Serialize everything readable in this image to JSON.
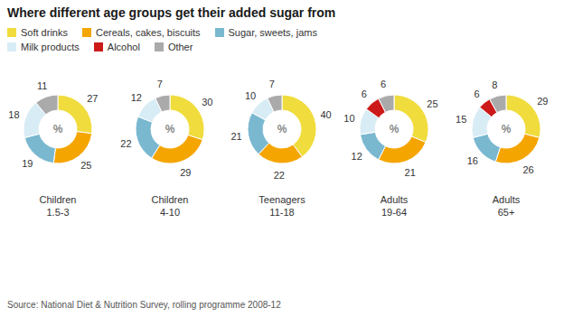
{
  "chart_data": {
    "type": "pie",
    "title": "Where different age groups get their added sugar from",
    "source": "Source: National Diet & Nutrition Survey, rolling programme 2008-12",
    "annotation": "%",
    "categories": [
      "Soft drinks",
      "Cereals, cakes, biscuits",
      "Sugar, sweets, jams",
      "Milk products",
      "Alcohol",
      "Other"
    ],
    "colors": [
      "#f0dc3c",
      "#f5a500",
      "#7ab8d0",
      "#d8ecf5",
      "#cc1a1a",
      "#aaaaaa"
    ],
    "series": [
      {
        "name": "Children\n1.5-3",
        "values": [
          27,
          25,
          19,
          18,
          0,
          11
        ]
      },
      {
        "name": "Children\n4-10",
        "values": [
          30,
          29,
          22,
          12,
          0,
          7
        ]
      },
      {
        "name": "Teenagers\n11-18",
        "values": [
          40,
          22,
          21,
          10,
          0,
          7
        ]
      },
      {
        "name": "Adults\n19-64",
        "values": [
          25,
          21,
          12,
          10,
          6,
          6
        ]
      },
      {
        "name": "Adults\n65+",
        "values": [
          29,
          26,
          16,
          15,
          6,
          8
        ]
      }
    ],
    "data_labels": true,
    "legend": "top left"
  }
}
